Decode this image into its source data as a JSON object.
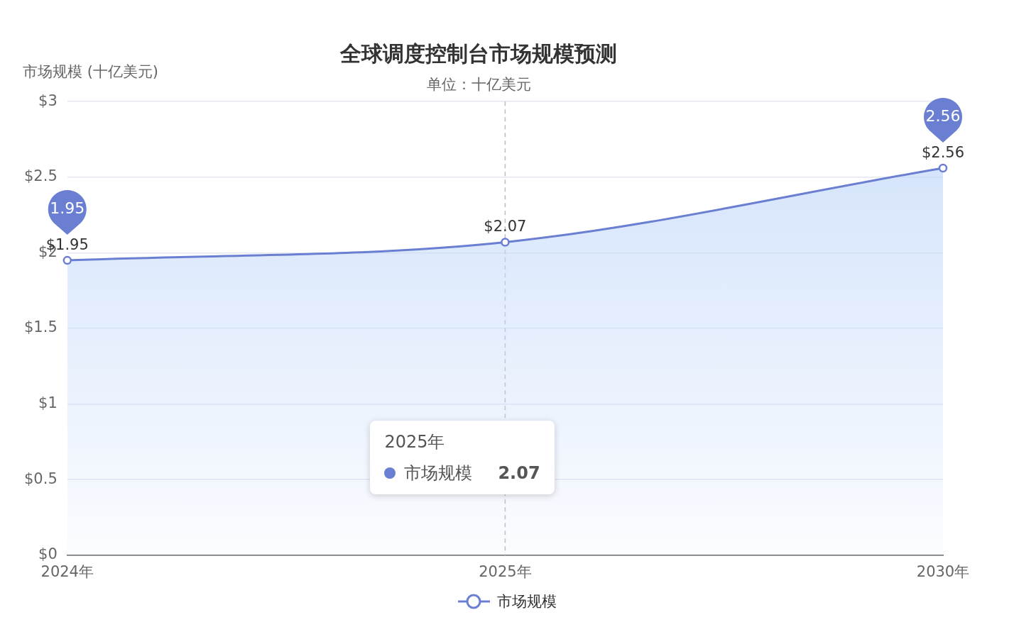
{
  "chart_data": {
    "type": "area",
    "title": "全球调度控制台市场规模预测",
    "subtitle": "单位：十亿美元",
    "ylabel": "市场规模 (十亿美元)",
    "categories": [
      "2024年",
      "2025年",
      "2030年"
    ],
    "series": [
      {
        "name": "市场规模",
        "color": "#6a7fd2",
        "values": [
          1.95,
          2.07,
          2.56
        ],
        "value_labels": [
          "$1.95",
          "$2.07",
          "$2.56"
        ]
      }
    ],
    "ylim": [
      0,
      3
    ],
    "yticks": [
      {
        "value": 0,
        "label": "$0"
      },
      {
        "value": 0.5,
        "label": "$0.5"
      },
      {
        "value": 1,
        "label": "$1"
      },
      {
        "value": 1.5,
        "label": "$1.5"
      },
      {
        "value": 2,
        "label": "$2"
      },
      {
        "value": 2.5,
        "label": "$2.5"
      },
      {
        "value": 3,
        "label": "$3"
      }
    ],
    "grid": "y",
    "legend": "bottom",
    "marker": "circle",
    "line_style": "solid",
    "ref_lines": [
      {
        "axis": "x",
        "value": "2025年",
        "color": "#bbbbbb",
        "line_style": "dashed"
      }
    ],
    "annotations": [
      {
        "text": "1.95",
        "x": "2024年",
        "y": 1.95
      },
      {
        "text": "2.56",
        "x": "2030年",
        "y": 2.56
      },
      "2.07"
    ]
  }
}
